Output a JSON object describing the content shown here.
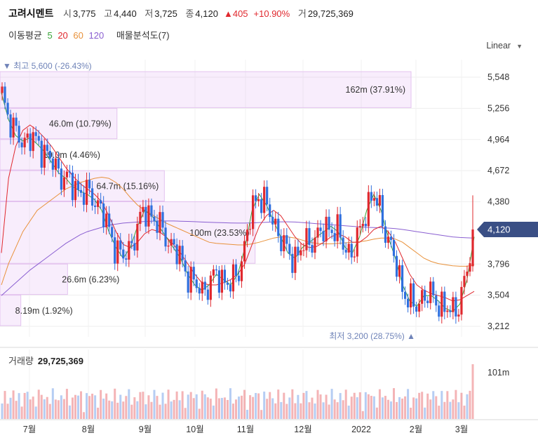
{
  "header": {
    "stock_name": "고려시멘트",
    "open_label": "시",
    "open": "3,775",
    "high_label": "고",
    "high": "4,440",
    "low_label": "저",
    "low": "3,725",
    "close_label": "종",
    "close": "4,120",
    "change": "▲405",
    "change_pct": "+10.90%",
    "volume_label": "거",
    "volume": "29,725,369"
  },
  "indicators": {
    "ma_label": "이동평균",
    "ma_periods": [
      {
        "label": "5",
        "color": "#3aa53a"
      },
      {
        "label": "20",
        "color": "#e0282e"
      },
      {
        "label": "60",
        "color": "#e8913a"
      },
      {
        "label": "120",
        "color": "#8a5fd1"
      }
    ],
    "vp_label": "매물분석도(7)"
  },
  "scale_mode": "Linear",
  "chart_data": {
    "type": "candlestick",
    "y_ticks": [
      5548,
      5256,
      4964,
      4672,
      4380,
      3796,
      3504,
      3212
    ],
    "y_tick_labels": [
      "5,548",
      "5,256",
      "4,964",
      "4,672",
      "4,380",
      "3,796",
      "3,504",
      "3,212"
    ],
    "current_price": 4120,
    "current_price_label": "4,120",
    "x_labels": [
      "7월",
      "8월",
      "9월",
      "10월",
      "11월",
      "12월",
      "2022",
      "2월",
      "3월"
    ],
    "annotations": {
      "high": {
        "label": "▼ 최고 5,600 (-26.43%)",
        "value": 5600
      },
      "low": {
        "label": "최저 3,200 (28.75%) ▲",
        "value": 3200
      }
    },
    "volume_profile": [
      {
        "label": "162m (37.91%)",
        "fraction": 0.3791
      },
      {
        "label": "46.0m (10.79%)",
        "fraction": 0.1079
      },
      {
        "label": "19.0m (4.46%)",
        "fraction": 0.0446
      },
      {
        "label": "64.7m (15.16%)",
        "fraction": 0.1516
      },
      {
        "label": "100m (23.53%)",
        "fraction": 0.2353
      },
      {
        "label": "26.6m (6.23%)",
        "fraction": 0.0623
      },
      {
        "label": "8.19m (1.92%)",
        "fraction": 0.0192
      }
    ],
    "volume_panel": {
      "label": "거래량",
      "value": "29,725,369",
      "tick_label": "101m"
    },
    "ma_lines": {
      "ma5": [
        5400,
        5150,
        5000,
        4950,
        4980,
        4920,
        4850,
        4750,
        4650,
        4600,
        4520,
        4480,
        4450,
        4400,
        4300,
        4100,
        3950,
        3850,
        3950,
        4150,
        4300,
        4250,
        4150,
        4050,
        3950,
        3850,
        3700,
        3600,
        3550,
        3600,
        3700,
        3650,
        3600,
        3700,
        3950,
        4300,
        4450,
        4350,
        4200,
        4050,
        3900,
        3850,
        3950,
        4000,
        4050,
        4100,
        4150,
        4100,
        3950,
        3900,
        4050,
        4300,
        4450,
        4300,
        4050,
        3850,
        3600,
        3450,
        3400,
        3500,
        3500,
        3450,
        3380,
        3350,
        3420,
        3650,
        4050
      ],
      "ma20": [
        3900,
        4600,
        4900,
        5050,
        5100,
        5050,
        4980,
        4900,
        4800,
        4700,
        4620,
        4550,
        4500,
        4450,
        4380,
        4250,
        4100,
        3980,
        3950,
        4000,
        4080,
        4120,
        4100,
        4050,
        3980,
        3900,
        3800,
        3700,
        3620,
        3600,
        3600,
        3620,
        3650,
        3700,
        3800,
        3980,
        4150,
        4250,
        4300,
        4250,
        4150,
        4050,
        3980,
        3950,
        3960,
        4000,
        4050,
        4080,
        4050,
        4000,
        4000,
        4050,
        4120,
        4150,
        4100,
        4000,
        3850,
        3700,
        3600,
        3550,
        3520,
        3500,
        3480,
        3450,
        3460,
        3500,
        3540
      ],
      "ma60": [
        3600,
        3800,
        3950,
        4100,
        4200,
        4300,
        4350,
        4400,
        4450,
        4500,
        4530,
        4560,
        4580,
        4600,
        4610,
        4600,
        4560,
        4500,
        4420,
        4350,
        4300,
        4260,
        4220,
        4180,
        4150,
        4120,
        4090,
        4060,
        4030,
        4000,
        3990,
        3985,
        3980,
        3975,
        3975,
        3985,
        4000,
        4020,
        4040,
        4050,
        4050,
        4040,
        4020,
        4000,
        3990,
        3985,
        3985,
        3990,
        3995,
        4000,
        4005,
        4015,
        4030,
        4040,
        4040,
        4030,
        4000,
        3950,
        3900,
        3850,
        3820,
        3800,
        3790,
        3780,
        3775,
        3775,
        3790
      ],
      "ma120": [
        3500,
        3560,
        3620,
        3680,
        3740,
        3790,
        3840,
        3890,
        3940,
        3990,
        4030,
        4070,
        4100,
        4120,
        4140,
        4160,
        4170,
        4180,
        4185,
        4190,
        4195,
        4198,
        4200,
        4200,
        4200,
        4198,
        4196,
        4193,
        4190,
        4187,
        4185,
        4183,
        4181,
        4180,
        4180,
        4182,
        4185,
        4188,
        4190,
        4192,
        4192,
        4190,
        4185,
        4180,
        4175,
        4170,
        4165,
        4160,
        4155,
        4150,
        4145,
        4140,
        4138,
        4136,
        4133,
        4128,
        4120,
        4110,
        4100,
        4090,
        4080,
        4070,
        4060,
        4050,
        4045,
        4042,
        4040
      ]
    }
  }
}
